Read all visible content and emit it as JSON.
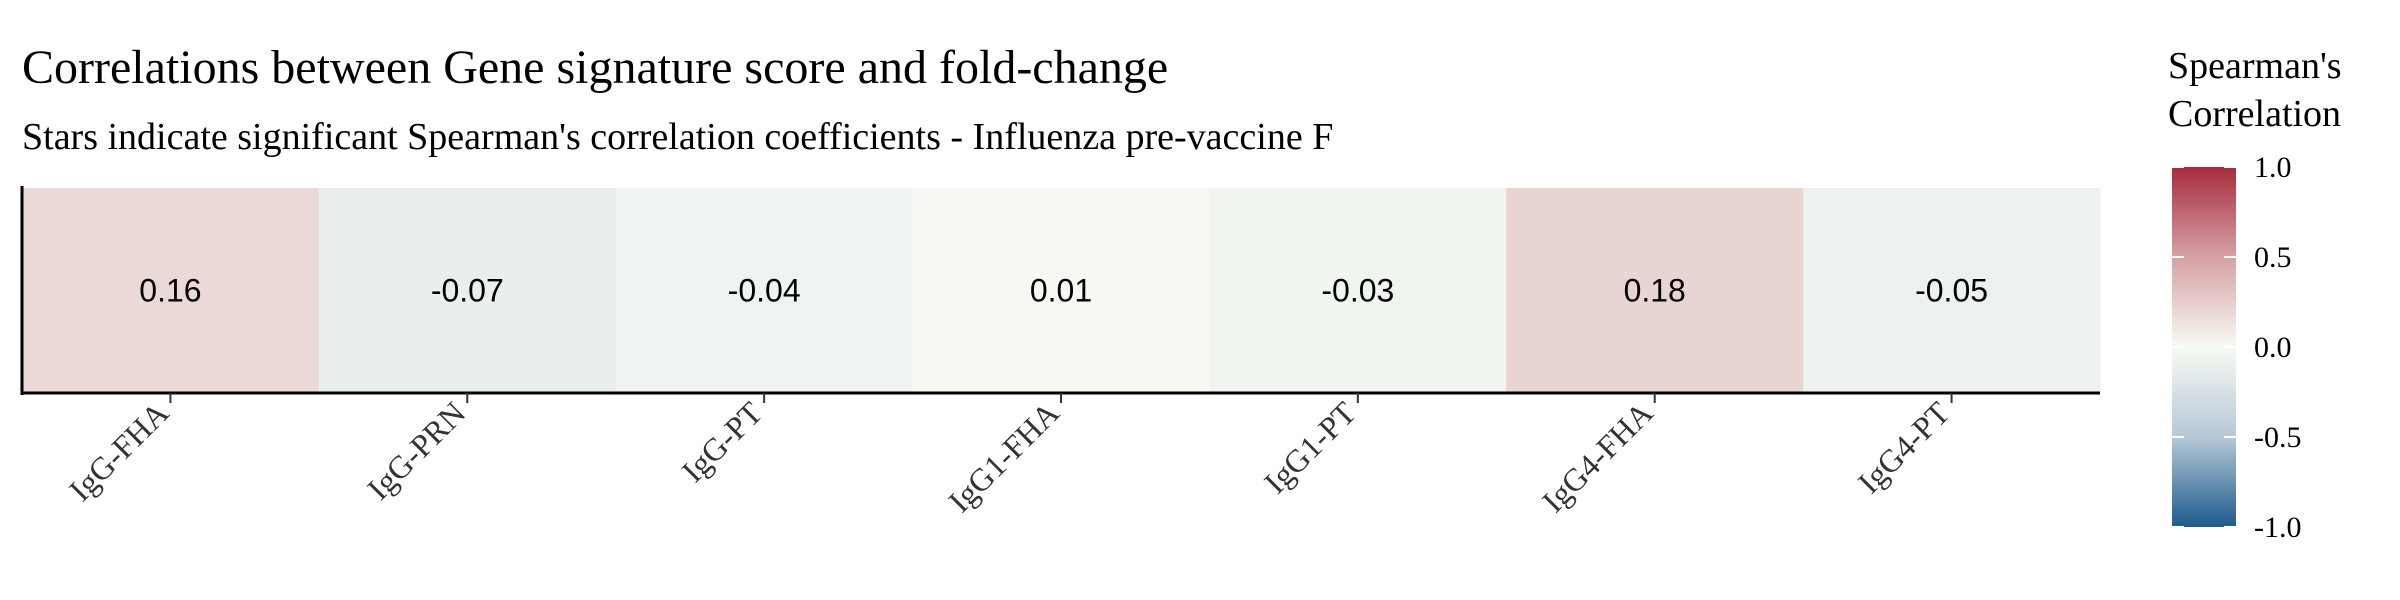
{
  "title": "Correlations between Gene signature score and fold-change",
  "subtitle": "Stars indicate significant Spearman's correlation coefficients - Influenza pre-vaccine F",
  "chart_data": {
    "type": "heatmap",
    "title": "Correlations between Gene signature score and fold-change",
    "subtitle": "Stars indicate significant Spearman's correlation coefficients - Influenza pre-vaccine F",
    "categories": [
      "IgG-FHA",
      "IgG-PRN",
      "IgG-PT",
      "IgG1-FHA",
      "IgG1-PT",
      "IgG4-FHA",
      "IgG4-PT"
    ],
    "values": [
      0.16,
      -0.07,
      -0.04,
      0.01,
      -0.03,
      0.18,
      -0.05
    ],
    "value_labels": [
      "0.16",
      "-0.07",
      "-0.04",
      "0.01",
      "-0.03",
      "0.18",
      "-0.05"
    ],
    "legend": {
      "title_lines": [
        "Spearman's",
        "Correlation"
      ],
      "ticks": [
        1.0,
        0.5,
        0.0,
        -0.5,
        -1.0
      ],
      "tick_labels": [
        "1.0",
        "0.5",
        "0.0",
        "-0.5",
        "-1.0"
      ],
      "range": [
        -1,
        1
      ],
      "placement": "right"
    },
    "colors": {
      "low": "#1d5b8c",
      "mid": "#f7faf3",
      "high": "#a52b3c"
    }
  }
}
